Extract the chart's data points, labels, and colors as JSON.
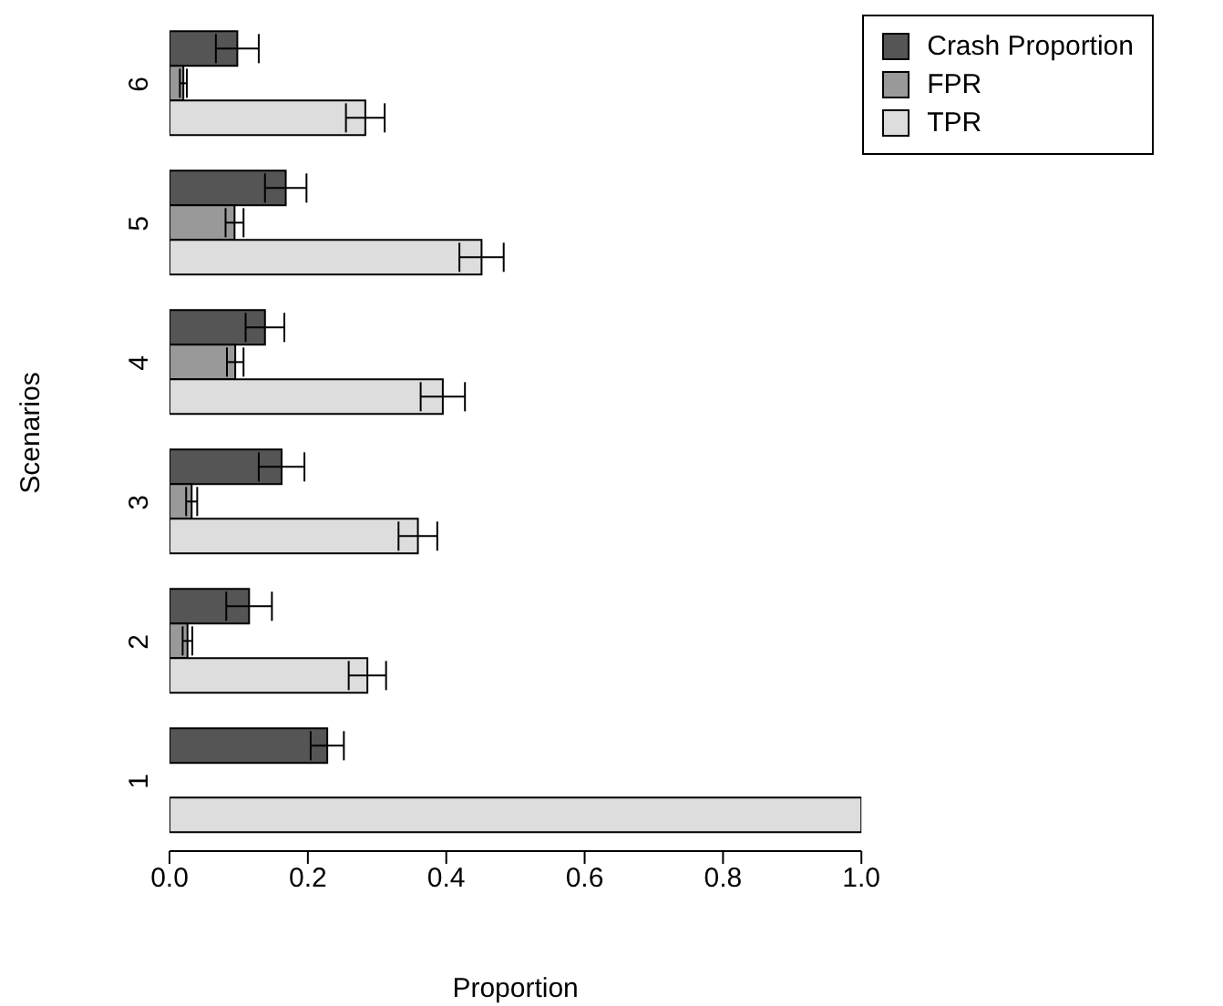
{
  "chart_data": {
    "type": "bar",
    "orientation": "horizontal",
    "xlabel": "Proportion",
    "ylabel": "Scenarios",
    "categories": [
      "6",
      "5",
      "4",
      "3",
      "2",
      "1"
    ],
    "series": [
      {
        "name": "Crash Proportion",
        "color": "#555555",
        "values": [
          0.098,
          0.168,
          0.138,
          0.162,
          0.115,
          0.228
        ],
        "errors": [
          0.031,
          0.03,
          0.028,
          0.033,
          0.033,
          0.024
        ]
      },
      {
        "name": "FPR",
        "color": "#999999",
        "values": [
          0.02,
          0.094,
          0.095,
          0.032,
          0.026,
          0
        ],
        "errors": [
          0.005,
          0.013,
          0.012,
          0.008,
          0.007,
          null
        ]
      },
      {
        "name": "TPR",
        "color": "#dddddd",
        "values": [
          0.283,
          0.451,
          0.395,
          0.359,
          0.286,
          1.0
        ],
        "errors": [
          0.028,
          0.032,
          0.032,
          0.028,
          0.027,
          null
        ]
      }
    ],
    "xlim": [
      0,
      1
    ],
    "xticks": [
      {
        "value": 0,
        "label": "0.0"
      },
      {
        "value": 0.2,
        "label": "0.2"
      },
      {
        "value": 0.4,
        "label": "0.4"
      },
      {
        "value": 0.6,
        "label": "0.6"
      },
      {
        "value": 0.8,
        "label": "0.8"
      },
      {
        "value": 1,
        "label": "1.0"
      }
    ],
    "grid": false,
    "legend": "top right"
  }
}
